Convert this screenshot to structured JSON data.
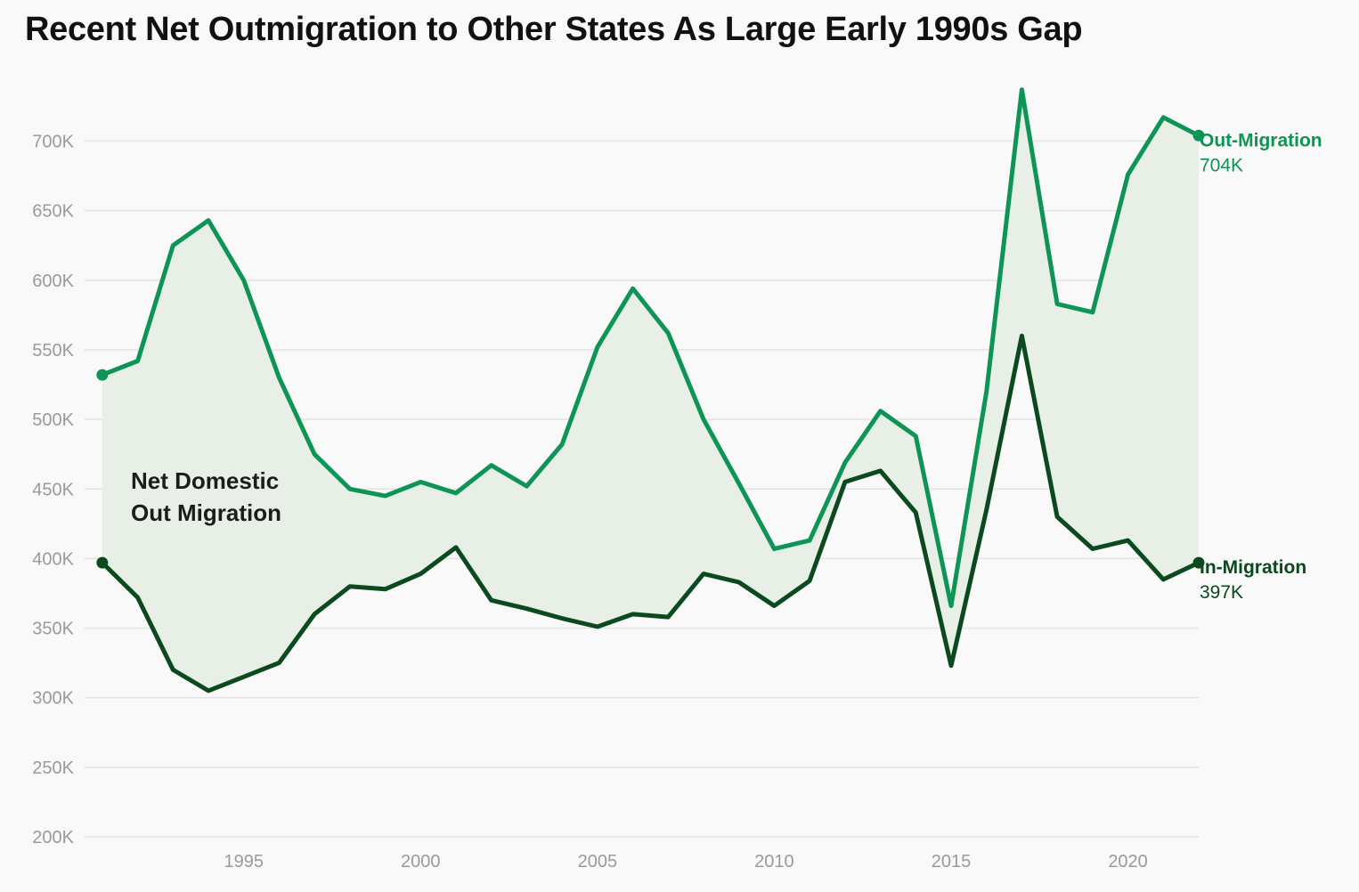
{
  "chart_data": {
    "type": "line",
    "title": "Recent Net Outmigration to Other States As Large Early 1990s Gap",
    "xlabel": "",
    "ylabel": "",
    "ylim": [
      200000,
      740000
    ],
    "xlim": [
      1991,
      2022
    ],
    "grid": true,
    "y_ticks": [
      200000,
      250000,
      300000,
      350000,
      400000,
      450000,
      500000,
      550000,
      600000,
      650000,
      700000
    ],
    "y_tick_labels": [
      "200K",
      "250K",
      "300K",
      "350K",
      "400K",
      "450K",
      "500K",
      "550K",
      "600K",
      "650K",
      "700K"
    ],
    "x_ticks": [
      1995,
      2000,
      2005,
      2010,
      2015,
      2020
    ],
    "x_tick_labels": [
      "1995",
      "2000",
      "2005",
      "2010",
      "2015",
      "2020"
    ],
    "x": [
      1991,
      1992,
      1993,
      1994,
      1995,
      1996,
      1997,
      1998,
      1999,
      2000,
      2001,
      2002,
      2003,
      2004,
      2005,
      2006,
      2007,
      2008,
      2009,
      2010,
      2011,
      2012,
      2013,
      2014,
      2015,
      2016,
      2017,
      2018,
      2019,
      2020,
      2021,
      2022
    ],
    "series": [
      {
        "name": "Out-Migration",
        "end_label": "704K",
        "color": "#0e9455",
        "values": [
          532000,
          542000,
          625000,
          643000,
          600000,
          530000,
          475000,
          450000,
          445000,
          455000,
          447000,
          467000,
          452000,
          482000,
          552000,
          594000,
          562000,
          500000,
          454000,
          407000,
          413000,
          469000,
          506000,
          488000,
          366000,
          520000,
          737000,
          583000,
          577000,
          676000,
          717000,
          704000
        ]
      },
      {
        "name": "In-Migration",
        "end_label": "397K",
        "color": "#0b4a1e",
        "values": [
          397000,
          372000,
          320000,
          305000,
          315000,
          325000,
          360000,
          380000,
          378000,
          389000,
          408000,
          370000,
          364000,
          357000,
          351000,
          360000,
          358000,
          389000,
          383000,
          366000,
          384000,
          455000,
          463000,
          433000,
          323000,
          435000,
          560000,
          430000,
          407000,
          413000,
          385000,
          397000
        ]
      }
    ],
    "area_between": {
      "label_lines": [
        "Net Domestic",
        "Out Migration"
      ],
      "color": "#e8efe7"
    }
  }
}
